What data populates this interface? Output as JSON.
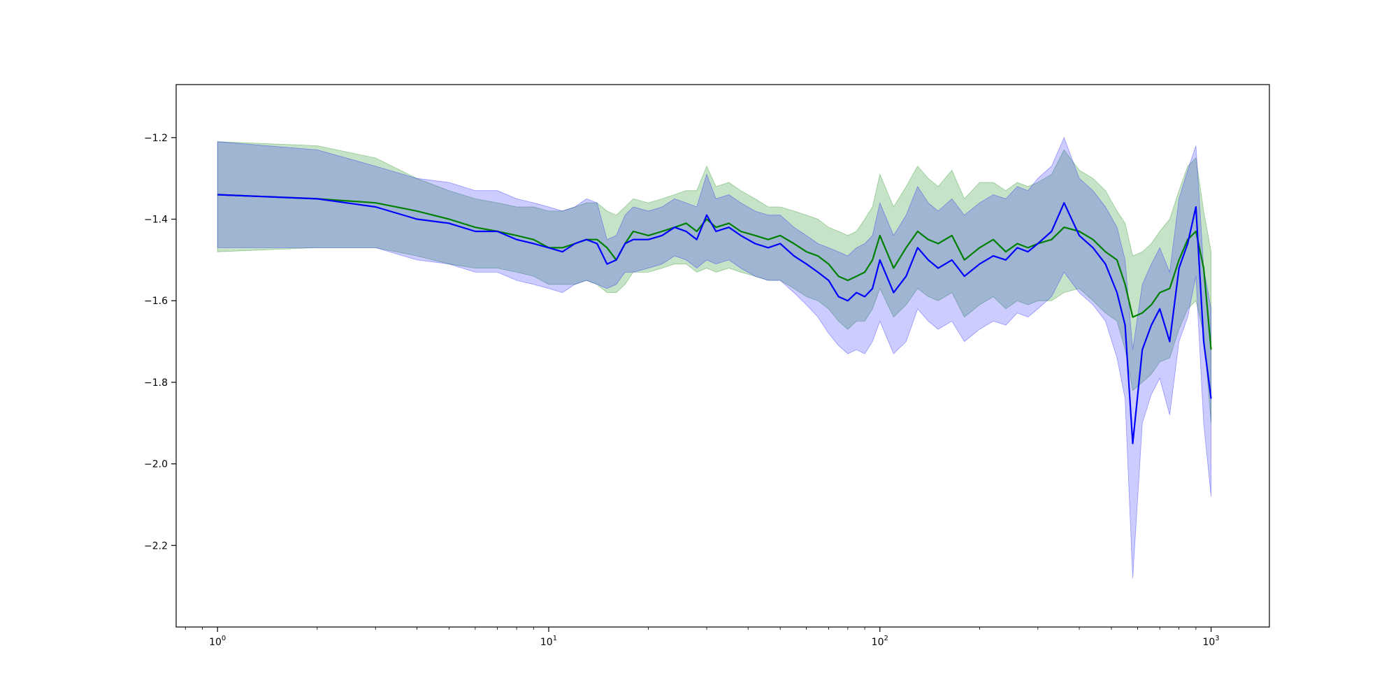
{
  "chart_data": {
    "type": "line",
    "title": "",
    "xlabel": "",
    "ylabel": "",
    "xscale": "log",
    "xlim": [
      0.75,
      1500
    ],
    "ylim": [
      -2.4,
      -1.07
    ],
    "grid": false,
    "legend": "none",
    "x_ticks": [
      {
        "value": 1,
        "base": "10",
        "exp": "0"
      },
      {
        "value": 10,
        "base": "10",
        "exp": "1"
      },
      {
        "value": 100,
        "base": "10",
        "exp": "2"
      },
      {
        "value": 1000,
        "base": "10",
        "exp": "3"
      }
    ],
    "y_ticks": [
      {
        "value": -1.2,
        "label": "−1.2"
      },
      {
        "value": -1.4,
        "label": "−1.4"
      },
      {
        "value": -1.6,
        "label": "−1.6"
      },
      {
        "value": -1.8,
        "label": "−1.8"
      },
      {
        "value": -2.0,
        "label": "−2.0"
      },
      {
        "value": -2.2,
        "label": "−2.2"
      }
    ],
    "series": [
      {
        "color": "#008000",
        "band_opacity": 0.22,
        "x": [
          1,
          2,
          3,
          4,
          5,
          6,
          7,
          8,
          9,
          10,
          11,
          12,
          13,
          14,
          15,
          16,
          17,
          18,
          20,
          22,
          24,
          26,
          28,
          30,
          32,
          35,
          38,
          42,
          46,
          50,
          55,
          60,
          65,
          70,
          75,
          80,
          85,
          90,
          95,
          100,
          110,
          120,
          130,
          140,
          150,
          165,
          180,
          200,
          220,
          240,
          260,
          280,
          300,
          330,
          360,
          400,
          440,
          480,
          520,
          550,
          580,
          620,
          660,
          700,
          750,
          800,
          850,
          900,
          950,
          1000
        ],
        "y": [
          -1.34,
          -1.35,
          -1.36,
          -1.38,
          -1.4,
          -1.42,
          -1.43,
          -1.44,
          -1.45,
          -1.47,
          -1.47,
          -1.46,
          -1.45,
          -1.45,
          -1.47,
          -1.5,
          -1.46,
          -1.43,
          -1.44,
          -1.43,
          -1.42,
          -1.41,
          -1.43,
          -1.4,
          -1.42,
          -1.41,
          -1.43,
          -1.44,
          -1.45,
          -1.44,
          -1.46,
          -1.48,
          -1.49,
          -1.51,
          -1.54,
          -1.55,
          -1.54,
          -1.53,
          -1.5,
          -1.44,
          -1.52,
          -1.47,
          -1.43,
          -1.45,
          -1.46,
          -1.44,
          -1.5,
          -1.47,
          -1.45,
          -1.48,
          -1.46,
          -1.47,
          -1.46,
          -1.45,
          -1.42,
          -1.43,
          -1.45,
          -1.48,
          -1.5,
          -1.56,
          -1.64,
          -1.63,
          -1.61,
          -1.58,
          -1.57,
          -1.5,
          -1.45,
          -1.43,
          -1.52,
          -1.72
        ],
        "upper": [
          -1.21,
          -1.22,
          -1.25,
          -1.3,
          -1.33,
          -1.35,
          -1.36,
          -1.37,
          -1.37,
          -1.38,
          -1.38,
          -1.37,
          -1.36,
          -1.36,
          -1.38,
          -1.39,
          -1.37,
          -1.35,
          -1.36,
          -1.35,
          -1.34,
          -1.33,
          -1.33,
          -1.27,
          -1.32,
          -1.31,
          -1.33,
          -1.35,
          -1.37,
          -1.37,
          -1.38,
          -1.39,
          -1.4,
          -1.42,
          -1.43,
          -1.44,
          -1.43,
          -1.4,
          -1.37,
          -1.29,
          -1.37,
          -1.32,
          -1.27,
          -1.3,
          -1.32,
          -1.28,
          -1.35,
          -1.31,
          -1.31,
          -1.33,
          -1.31,
          -1.32,
          -1.31,
          -1.29,
          -1.23,
          -1.28,
          -1.3,
          -1.33,
          -1.38,
          -1.41,
          -1.49,
          -1.48,
          -1.46,
          -1.43,
          -1.4,
          -1.33,
          -1.27,
          -1.25,
          -1.38,
          -1.48
        ],
        "lower": [
          -1.48,
          -1.47,
          -1.47,
          -1.49,
          -1.51,
          -1.52,
          -1.52,
          -1.53,
          -1.54,
          -1.56,
          -1.56,
          -1.56,
          -1.55,
          -1.56,
          -1.58,
          -1.58,
          -1.56,
          -1.53,
          -1.53,
          -1.52,
          -1.51,
          -1.51,
          -1.53,
          -1.52,
          -1.53,
          -1.52,
          -1.53,
          -1.54,
          -1.55,
          -1.55,
          -1.57,
          -1.59,
          -1.6,
          -1.62,
          -1.65,
          -1.67,
          -1.65,
          -1.65,
          -1.62,
          -1.57,
          -1.64,
          -1.61,
          -1.57,
          -1.59,
          -1.6,
          -1.58,
          -1.64,
          -1.61,
          -1.59,
          -1.62,
          -1.6,
          -1.61,
          -1.6,
          -1.6,
          -1.58,
          -1.57,
          -1.6,
          -1.63,
          -1.65,
          -1.72,
          -1.82,
          -1.8,
          -1.78,
          -1.75,
          -1.74,
          -1.67,
          -1.62,
          -1.6,
          -1.68,
          -1.9
        ]
      },
      {
        "color": "#0000ff",
        "band_opacity": 0.2,
        "x": [
          1,
          2,
          3,
          4,
          5,
          6,
          7,
          8,
          9,
          10,
          11,
          12,
          13,
          14,
          15,
          16,
          17,
          18,
          20,
          22,
          24,
          26,
          28,
          30,
          32,
          35,
          38,
          42,
          46,
          50,
          55,
          60,
          65,
          70,
          75,
          80,
          85,
          90,
          95,
          100,
          110,
          120,
          130,
          140,
          150,
          165,
          180,
          200,
          220,
          240,
          260,
          280,
          300,
          330,
          360,
          400,
          440,
          480,
          520,
          550,
          580,
          620,
          660,
          700,
          750,
          800,
          850,
          900,
          950,
          1000
        ],
        "y": [
          -1.34,
          -1.35,
          -1.37,
          -1.4,
          -1.41,
          -1.43,
          -1.43,
          -1.45,
          -1.46,
          -1.47,
          -1.48,
          -1.46,
          -1.45,
          -1.46,
          -1.51,
          -1.5,
          -1.46,
          -1.45,
          -1.45,
          -1.44,
          -1.42,
          -1.43,
          -1.45,
          -1.39,
          -1.43,
          -1.42,
          -1.44,
          -1.46,
          -1.47,
          -1.46,
          -1.49,
          -1.51,
          -1.53,
          -1.55,
          -1.59,
          -1.6,
          -1.58,
          -1.59,
          -1.57,
          -1.5,
          -1.58,
          -1.54,
          -1.47,
          -1.5,
          -1.52,
          -1.5,
          -1.54,
          -1.51,
          -1.49,
          -1.5,
          -1.47,
          -1.48,
          -1.46,
          -1.43,
          -1.36,
          -1.44,
          -1.47,
          -1.51,
          -1.58,
          -1.66,
          -1.95,
          -1.72,
          -1.66,
          -1.62,
          -1.7,
          -1.52,
          -1.46,
          -1.37,
          -1.7,
          -1.84
        ],
        "upper": [
          -1.21,
          -1.23,
          -1.27,
          -1.3,
          -1.31,
          -1.33,
          -1.33,
          -1.35,
          -1.36,
          -1.37,
          -1.38,
          -1.37,
          -1.35,
          -1.36,
          -1.45,
          -1.44,
          -1.39,
          -1.37,
          -1.38,
          -1.37,
          -1.35,
          -1.36,
          -1.37,
          -1.29,
          -1.35,
          -1.34,
          -1.36,
          -1.38,
          -1.39,
          -1.39,
          -1.42,
          -1.44,
          -1.46,
          -1.47,
          -1.48,
          -1.49,
          -1.47,
          -1.46,
          -1.44,
          -1.36,
          -1.44,
          -1.39,
          -1.32,
          -1.36,
          -1.38,
          -1.35,
          -1.39,
          -1.36,
          -1.34,
          -1.35,
          -1.32,
          -1.33,
          -1.3,
          -1.27,
          -1.2,
          -1.3,
          -1.33,
          -1.37,
          -1.42,
          -1.5,
          -1.72,
          -1.56,
          -1.51,
          -1.47,
          -1.53,
          -1.35,
          -1.28,
          -1.22,
          -1.52,
          -1.62
        ],
        "lower": [
          -1.47,
          -1.47,
          -1.47,
          -1.5,
          -1.51,
          -1.53,
          -1.53,
          -1.55,
          -1.56,
          -1.57,
          -1.58,
          -1.56,
          -1.55,
          -1.56,
          -1.57,
          -1.56,
          -1.53,
          -1.53,
          -1.52,
          -1.51,
          -1.49,
          -1.5,
          -1.52,
          -1.5,
          -1.51,
          -1.5,
          -1.52,
          -1.54,
          -1.55,
          -1.55,
          -1.58,
          -1.61,
          -1.64,
          -1.68,
          -1.71,
          -1.73,
          -1.72,
          -1.73,
          -1.7,
          -1.65,
          -1.73,
          -1.7,
          -1.62,
          -1.65,
          -1.67,
          -1.65,
          -1.7,
          -1.67,
          -1.65,
          -1.66,
          -1.63,
          -1.64,
          -1.62,
          -1.59,
          -1.53,
          -1.58,
          -1.61,
          -1.65,
          -1.74,
          -1.84,
          -2.28,
          -1.9,
          -1.83,
          -1.79,
          -1.88,
          -1.7,
          -1.64,
          -1.54,
          -1.9,
          -2.08
        ]
      }
    ]
  }
}
